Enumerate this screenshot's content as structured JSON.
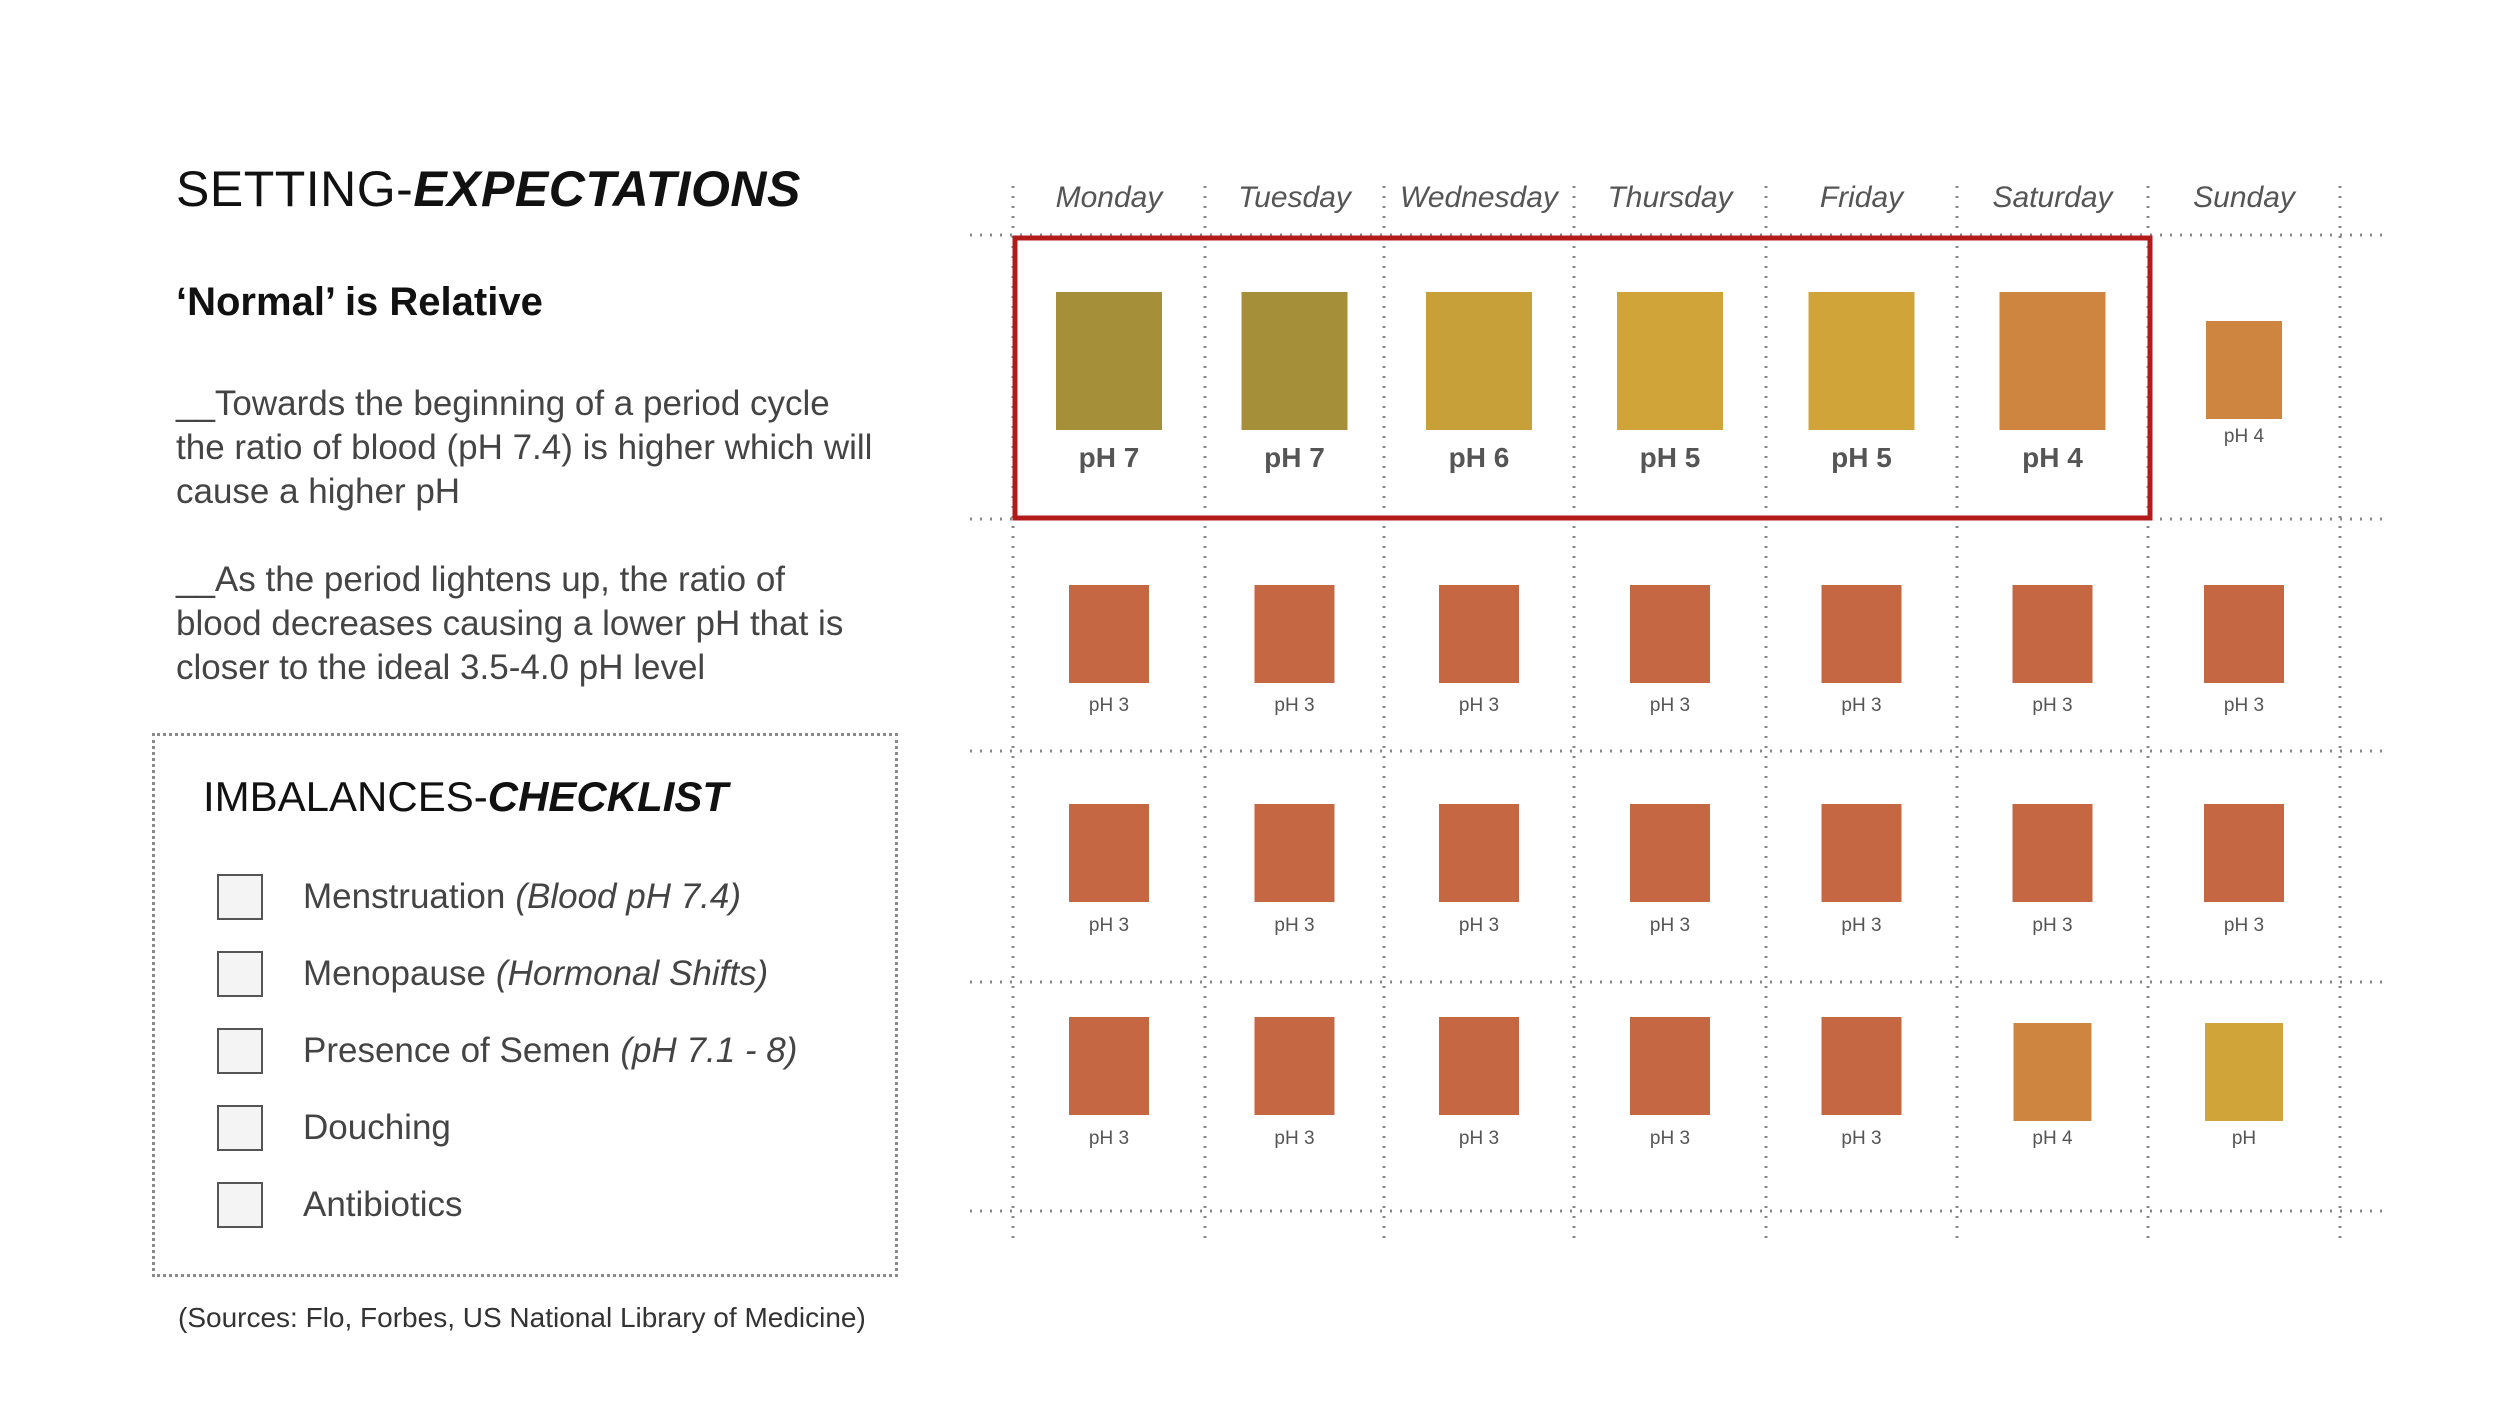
{
  "header": {
    "title_plain": "SETTING-",
    "title_bold": "EXPECTATIONS"
  },
  "section": {
    "subtitle": "‘Normal’ is Relative"
  },
  "paragraphs": [
    "__Towards the beginning of a period cycle the ratio of blood (pH 7.4) is higher which will cause a higher pH",
    "__As the period lightens up, the ratio of blood decreases causing a lower pH that is closer to the ideal 3.5-4.0 pH level"
  ],
  "checklist": {
    "title_plain": "IMBALANCES-",
    "title_bold": "CHECKLIST",
    "items": [
      {
        "label": "Menstruation",
        "note": "(Blood pH 7.4)"
      },
      {
        "label": "Menopause",
        "note": "(Hormonal Shifts)"
      },
      {
        "label": "Presence of Semen",
        "note": "(pH 7.1 - 8)"
      },
      {
        "label": "Douching",
        "note": ""
      },
      {
        "label": "Antibiotics",
        "note": ""
      }
    ]
  },
  "sources": "(Sources: Flo, Forbes, US National Library of Medicine)",
  "colors": {
    "ph7": "#a68f39",
    "ph6": "#c8a03a",
    "ph5": "#d1a43a",
    "ph4": "#cd853f",
    "ph3": "#c66744",
    "highlight": "#b31b1b"
  },
  "calendar": {
    "days": [
      "Monday",
      "Tuesday",
      "Wednesday",
      "Thursday",
      "Friday",
      "Saturday",
      "Sunday"
    ],
    "weeks": [
      [
        {
          "label": "pH 7",
          "color": "#a68f39"
        },
        {
          "label": "pH 7",
          "color": "#a68f39"
        },
        {
          "label": "pH 6",
          "color": "#c8a03a"
        },
        {
          "label": "pH 5",
          "color": "#d1a43a"
        },
        {
          "label": "pH 5",
          "color": "#d1a43a"
        },
        {
          "label": "pH 4",
          "color": "#cd853f"
        },
        {
          "label": "pH 4",
          "color": "#cd853f"
        }
      ],
      [
        {
          "label": "pH 3",
          "color": "#c66744"
        },
        {
          "label": "pH 3",
          "color": "#c66744"
        },
        {
          "label": "pH 3",
          "color": "#c66744"
        },
        {
          "label": "pH 3",
          "color": "#c66744"
        },
        {
          "label": "pH 3",
          "color": "#c66744"
        },
        {
          "label": "pH 3",
          "color": "#c66744"
        },
        {
          "label": "pH 3",
          "color": "#c66744"
        }
      ],
      [
        {
          "label": "pH 3",
          "color": "#c66744"
        },
        {
          "label": "pH 3",
          "color": "#c66744"
        },
        {
          "label": "pH 3",
          "color": "#c66744"
        },
        {
          "label": "pH 3",
          "color": "#c66744"
        },
        {
          "label": "pH 3",
          "color": "#c66744"
        },
        {
          "label": "pH 3",
          "color": "#c66744"
        },
        {
          "label": "pH 3",
          "color": "#c66744"
        }
      ],
      [
        {
          "label": "pH 3",
          "color": "#c66744"
        },
        {
          "label": "pH 3",
          "color": "#c66744"
        },
        {
          "label": "pH 3",
          "color": "#c66744"
        },
        {
          "label": "pH 3",
          "color": "#c66744"
        },
        {
          "label": "pH 3",
          "color": "#c66744"
        },
        {
          "label": "pH 4",
          "color": "#cd853f"
        },
        {
          "label": "pH",
          "color": "#d1a43a"
        }
      ]
    ],
    "highlighted_days": 6
  }
}
